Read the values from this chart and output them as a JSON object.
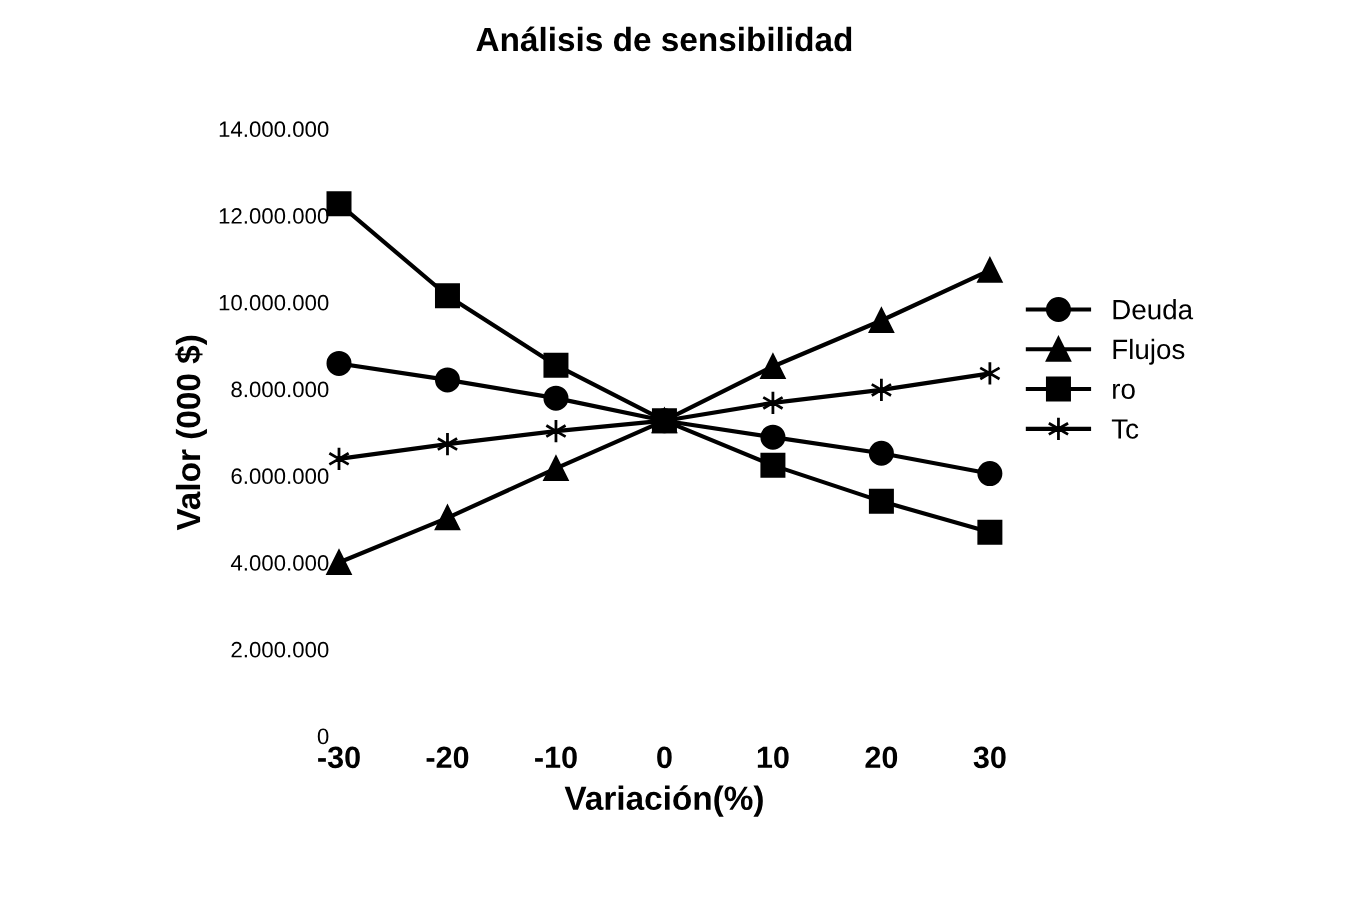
{
  "chart_data": {
    "type": "line",
    "title": "Análisis de sensibilidad",
    "xlabel": "Variación(%)",
    "ylabel": "Valor (000 $)",
    "x": [
      -30,
      -20,
      -10,
      0,
      10,
      20,
      30
    ],
    "xlim": [
      -30,
      30
    ],
    "xticks": [
      -30,
      -20,
      -10,
      0,
      10,
      20,
      30
    ],
    "ylim": [
      0,
      14000000
    ],
    "yticks": [
      {
        "value": 0,
        "label": "0"
      },
      {
        "value": 2000000,
        "label": "2.000.000"
      },
      {
        "value": 4000000,
        "label": "4.000.000"
      },
      {
        "value": 6000000,
        "label": "6.000.000"
      },
      {
        "value": 8000000,
        "label": "8.000.000"
      },
      {
        "value": 10000000,
        "label": "10.000.000"
      },
      {
        "value": 12000000,
        "label": "12.000.000"
      },
      {
        "value": 14000000,
        "label": "14.000.000"
      }
    ],
    "grid": false,
    "legend": "right",
    "series": [
      {
        "name": "Deuda",
        "color": "#000000",
        "marker": "circle",
        "values": [
          8590000,
          8210000,
          7790000,
          7270000,
          6890000,
          6520000,
          6050000
        ]
      },
      {
        "name": "Flujos",
        "color": "#000000",
        "marker": "triangle",
        "values": [
          4000000,
          5030000,
          6170000,
          7270000,
          8520000,
          9580000,
          10740000
        ]
      },
      {
        "name": "ro",
        "color": "#000000",
        "marker": "square",
        "values": [
          12270000,
          10150000,
          8550000,
          7270000,
          6240000,
          5410000,
          4700000
        ]
      },
      {
        "name": "Tc",
        "color": "#000000",
        "marker": "cross",
        "values": [
          6390000,
          6730000,
          7030000,
          7270000,
          7680000,
          7980000,
          8360000
        ]
      }
    ]
  }
}
